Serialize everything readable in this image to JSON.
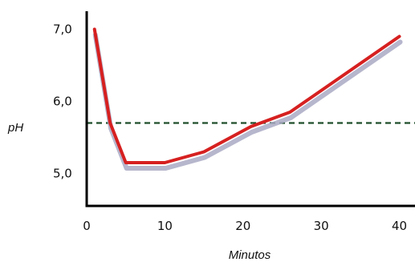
{
  "chart_data": {
    "type": "line",
    "xlabel": "Minutos",
    "ylabel": "pH",
    "xlim": [
      0,
      42
    ],
    "ylim": [
      4.55,
      7.25
    ],
    "x_ticks": [
      0,
      10,
      20,
      30,
      40
    ],
    "x_tick_labels": [
      "0",
      "10",
      "20",
      "30",
      "40"
    ],
    "y_ticks": [
      5.0,
      6.0,
      7.0
    ],
    "y_tick_labels": [
      "5,0",
      "6,0",
      "7,0"
    ],
    "grid": false,
    "series": [
      {
        "color": "#d62020",
        "shadow_color": "#a9a9c4",
        "points": [
          {
            "x": 1,
            "y": 7.0
          },
          {
            "x": 3,
            "y": 5.7
          },
          {
            "x": 5,
            "y": 5.15
          },
          {
            "x": 10,
            "y": 5.15
          },
          {
            "x": 15,
            "y": 5.3
          },
          {
            "x": 21,
            "y": 5.65
          },
          {
            "x": 26,
            "y": 5.85
          },
          {
            "x": 40,
            "y": 6.9
          }
        ]
      }
    ],
    "reference_lines": [
      {
        "axis": "y",
        "value": 5.7,
        "style": "dashed",
        "color": "#1f4d2a"
      }
    ]
  }
}
